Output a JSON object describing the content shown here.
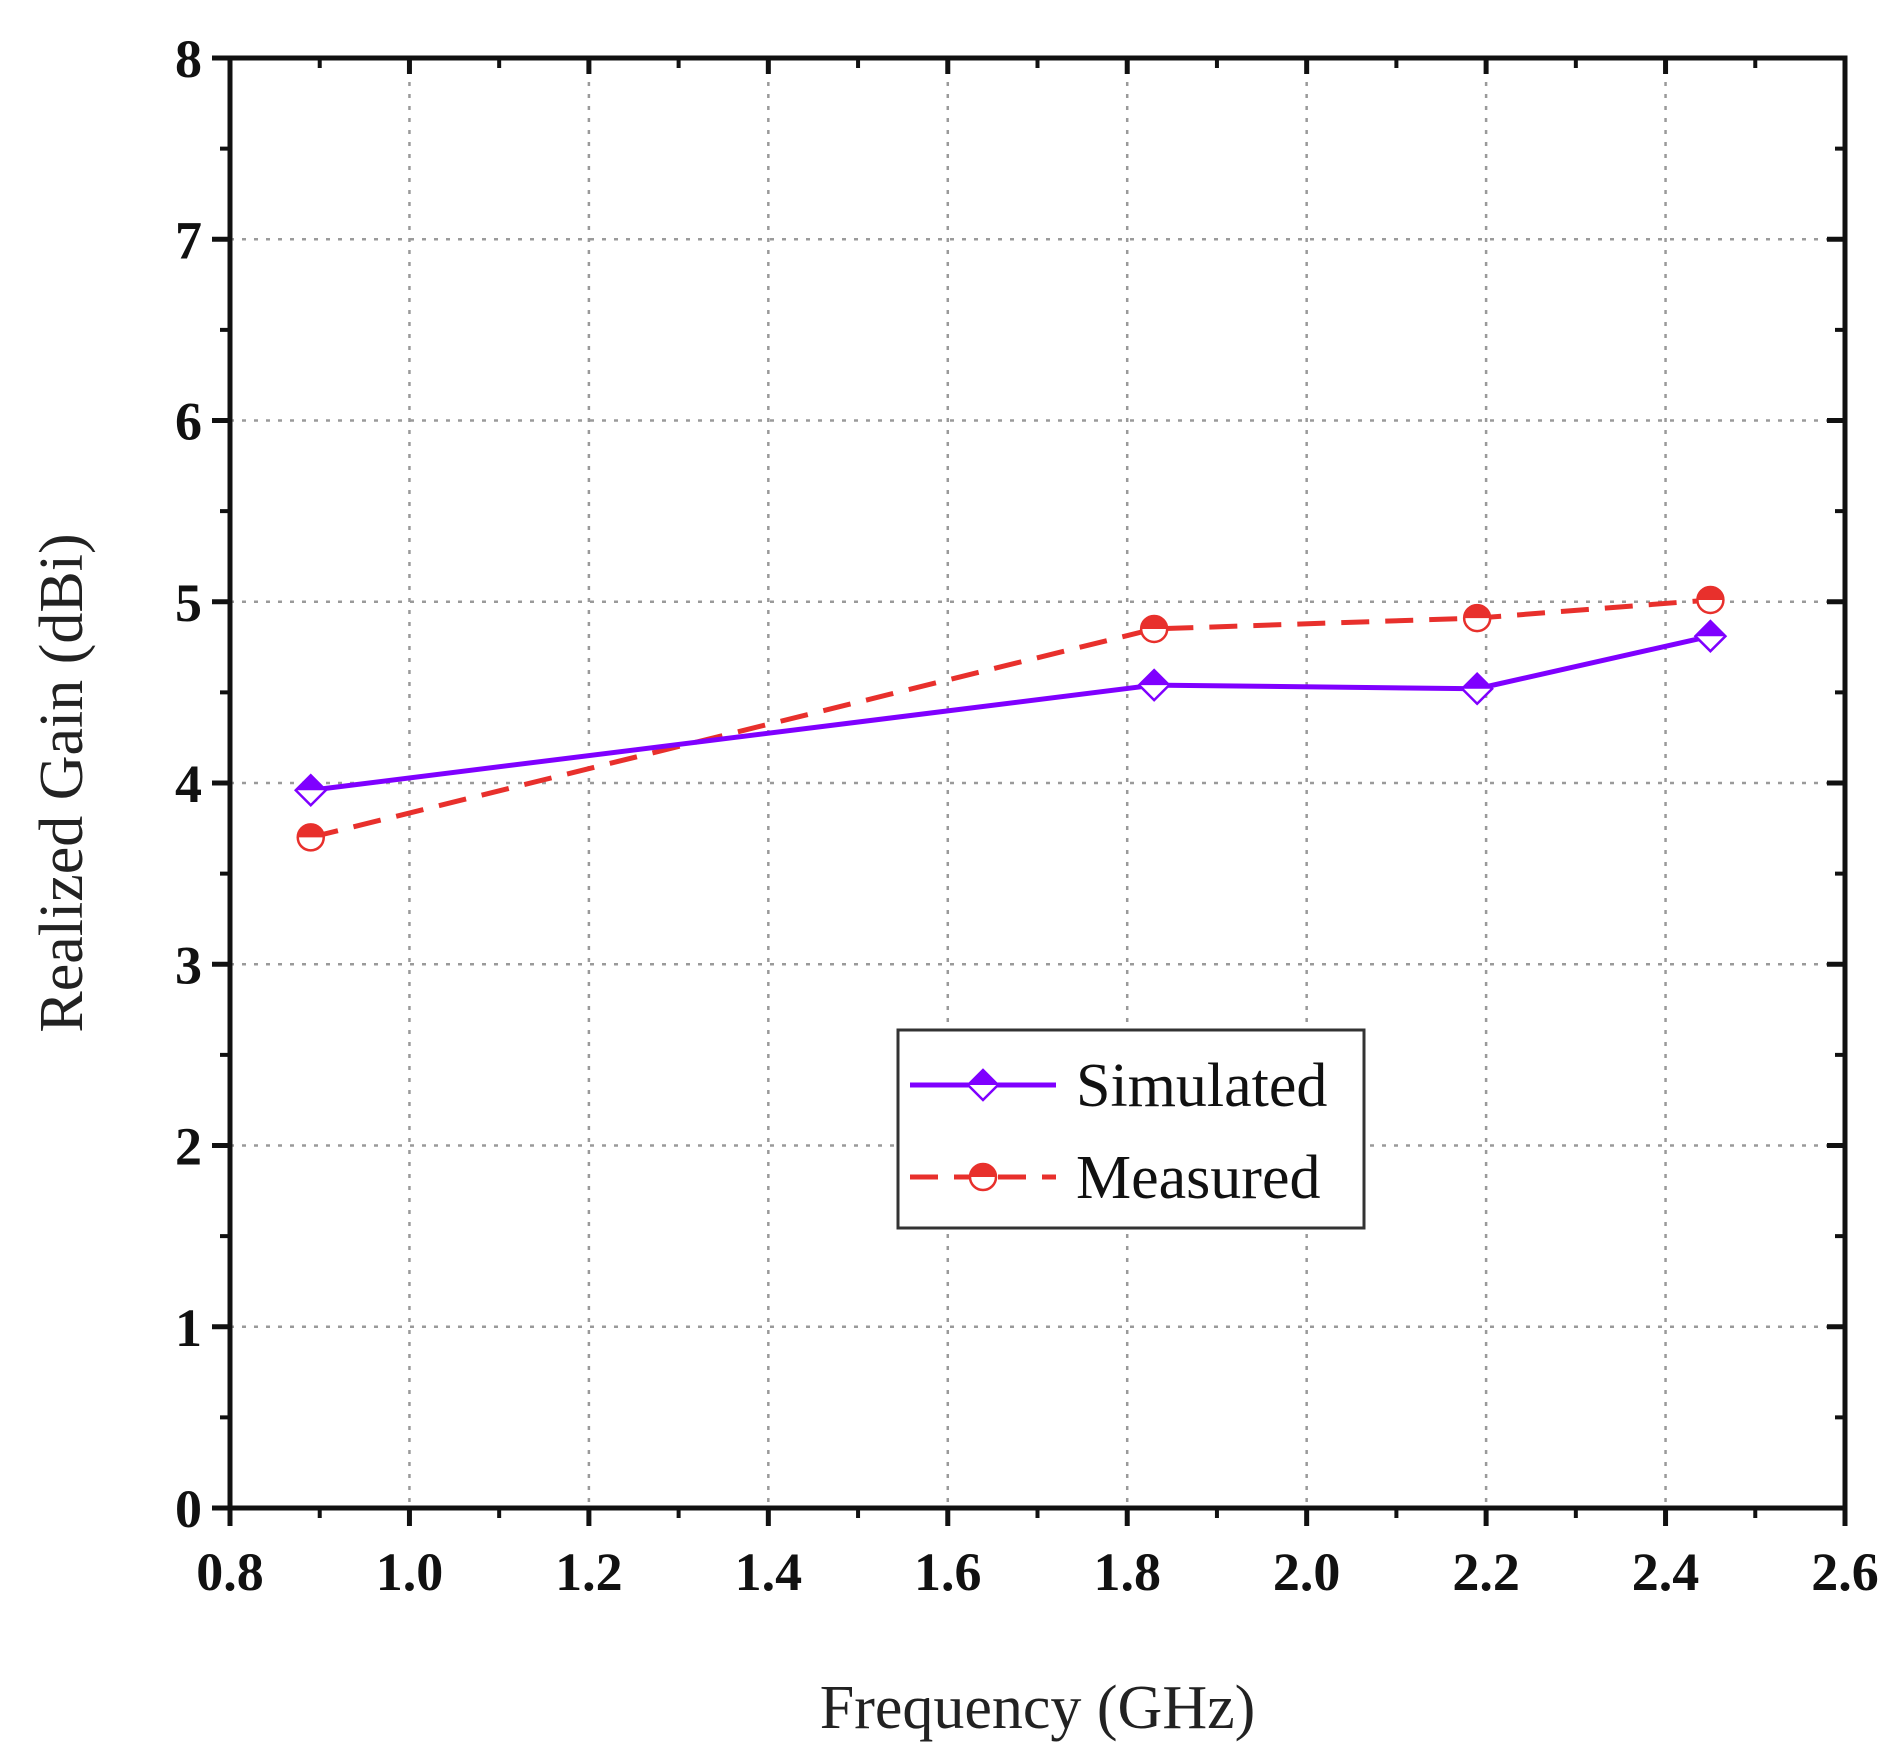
{
  "chart_data": {
    "type": "line",
    "title": "",
    "xlabel": "Frequency (GHz)",
    "ylabel": "Realized Gain (dBi)",
    "xlim": [
      0.8,
      2.6
    ],
    "ylim": [
      0,
      8
    ],
    "xticks": [
      "0.8",
      "1.0",
      "1.2",
      "1.4",
      "1.6",
      "1.8",
      "2.0",
      "2.2",
      "2.4",
      "2.6"
    ],
    "yticks": [
      "0",
      "1",
      "2",
      "3",
      "4",
      "5",
      "6",
      "7",
      "8"
    ],
    "grid": true,
    "legend_position": "center-right",
    "series": [
      {
        "name": "Simulated",
        "color": "#7f00ff",
        "line_style": "solid",
        "marker": "diamond-half",
        "x": [
          0.89,
          1.83,
          2.19,
          2.45
        ],
        "y": [
          3.96,
          4.54,
          4.52,
          4.81
        ]
      },
      {
        "name": "Measured",
        "color": "#e8302c",
        "line_style": "dashed",
        "marker": "circle-half",
        "x": [
          0.89,
          1.83,
          2.19,
          2.45
        ],
        "y": [
          3.7,
          4.85,
          4.91,
          5.01
        ]
      }
    ]
  }
}
